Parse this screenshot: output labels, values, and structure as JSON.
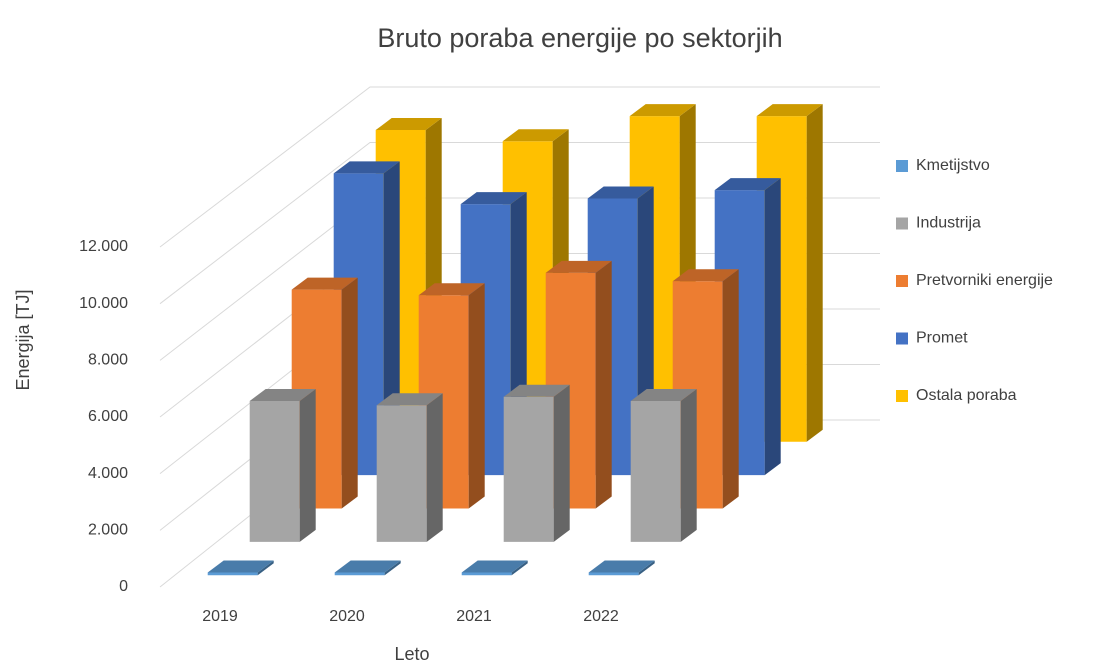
{
  "chart_data": {
    "type": "bar3d",
    "title": "Bruto poraba energije po sektorjih",
    "x_label": "Leto",
    "y_label": "Energija [TJ]",
    "categories": [
      "2019",
      "2020",
      "2021",
      "2022"
    ],
    "series": [
      {
        "name": "Kmetijstvo",
        "color": "#5b9bd5",
        "values": [
          100,
          100,
          100,
          100
        ]
      },
      {
        "name": "Industrija",
        "color": "#a5a5a5",
        "values": [
          5000,
          4850,
          5150,
          5000
        ]
      },
      {
        "name": "Pretvorniki energije",
        "color": "#ed7d31",
        "values": [
          7800,
          7600,
          8400,
          8100
        ]
      },
      {
        "name": "Promet",
        "color": "#4472c4",
        "values": [
          10800,
          9700,
          9900,
          10200
        ]
      },
      {
        "name": "Ostala poraba",
        "color": "#ffc000",
        "values": [
          11200,
          10800,
          11700,
          11700
        ]
      }
    ],
    "ylim": [
      0,
      12000
    ],
    "yticks": [
      0,
      {
        "value": 2000,
        "label": "2.000"
      },
      {
        "value": 4000,
        "label": "4.000"
      },
      {
        "value": 6000,
        "label": "6.000"
      },
      {
        "value": 8000,
        "label": "8.000"
      },
      {
        "value": 10000,
        "label": "10.000"
      },
      {
        "value": 12000,
        "label": "12.000"
      }
    ],
    "grid": true,
    "legend": "right"
  }
}
